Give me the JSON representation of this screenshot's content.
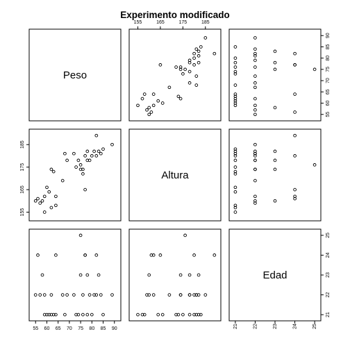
{
  "chart_data": {
    "type": "scatter",
    "subtype": "pairs-matrix",
    "title": "Experimento modificado",
    "variables": [
      {
        "name": "Peso",
        "range": [
          54,
          91
        ],
        "ticks": [
          55,
          60,
          65,
          70,
          75,
          80,
          85,
          90
        ]
      },
      {
        "name": "Altura",
        "range": [
          153,
          190
        ],
        "ticks": [
          155,
          165,
          175,
          185
        ]
      },
      {
        "name": "Edad",
        "range": [
          20.9,
          25.1
        ],
        "ticks": [
          21,
          22,
          23,
          24,
          25
        ]
      }
    ],
    "observations": [
      [
        55,
        160,
        22
      ],
      [
        56,
        161,
        24
      ],
      [
        57,
        159,
        22
      ],
      [
        58,
        160,
        23
      ],
      [
        59,
        162,
        22
      ],
      [
        59,
        155,
        21
      ],
      [
        60,
        166,
        21
      ],
      [
        61,
        164,
        21
      ],
      [
        62,
        157,
        21
      ],
      [
        62,
        174,
        22
      ],
      [
        63,
        173,
        21
      ],
      [
        64,
        162,
        24
      ],
      [
        64,
        158,
        21
      ],
      [
        67,
        169,
        22
      ],
      [
        68,
        181,
        21
      ],
      [
        69,
        178,
        22
      ],
      [
        72,
        181,
        22
      ],
      [
        73,
        175,
        21
      ],
      [
        74,
        178,
        21
      ],
      [
        75,
        176,
        25
      ],
      [
        75,
        174,
        23
      ],
      [
        76,
        172,
        21
      ],
      [
        76,
        174,
        22
      ],
      [
        77,
        165,
        24
      ],
      [
        77,
        180,
        24
      ],
      [
        78,
        178,
        23
      ],
      [
        78,
        182,
        21
      ],
      [
        79,
        178,
        22
      ],
      [
        80,
        180,
        21
      ],
      [
        81,
        182,
        22
      ],
      [
        82,
        180,
        22
      ],
      [
        82,
        189,
        24
      ],
      [
        83,
        182,
        23
      ],
      [
        84,
        181,
        22
      ],
      [
        85,
        183,
        21
      ],
      [
        89,
        185,
        22
      ]
    ]
  }
}
